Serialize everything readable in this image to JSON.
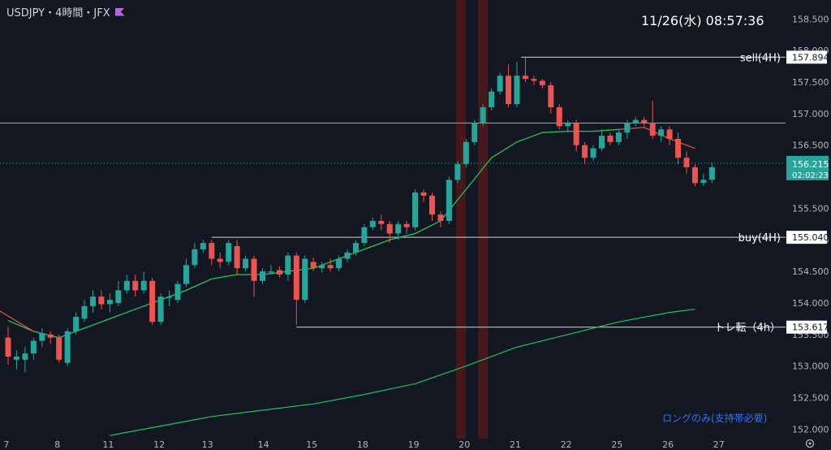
{
  "header": {
    "symbol_line": "USDJPY・4時間・JFX",
    "flag_icon": "flag-icon"
  },
  "clock": "11/26(水)   08:57:36",
  "note": "ロングのみ(支持帯必要)",
  "colors": {
    "bg": "#131722",
    "up": "#26a69a",
    "down": "#ef5350",
    "axis_text": "#b2b5be",
    "orange": "#f7931a",
    "ma_short": "#22c55e",
    "ma_short_red": "#e05050",
    "ma_long": "#18c464",
    "band": "#5a1a1a"
  },
  "chart_data": {
    "type": "candlestick",
    "title": "USDJPY・4時間・JFX",
    "y_ticks": [
      "158.500",
      "158.000",
      "157.500",
      "157.000",
      "156.500",
      "156.000",
      "155.500",
      "155.000",
      "154.500",
      "154.000",
      "153.500",
      "153.000",
      "152.500",
      "152.000"
    ],
    "ylim": [
      151.85,
      158.8
    ],
    "x_ticks": [
      "7",
      "8",
      "11",
      "12",
      "13",
      "14",
      "15",
      "18",
      "19",
      "20",
      "21",
      "22",
      "25",
      "26",
      "27"
    ],
    "x_tick_index": [
      0.0,
      6.0,
      12.0,
      18.0,
      23.7,
      30.3,
      36.0,
      42.0,
      48.0,
      54.0,
      60.0,
      66.0,
      72.0,
      78.0,
      84.0
    ],
    "candles": [
      [
        153.45,
        153.15,
        153.62,
        153.02
      ],
      [
        153.1,
        153.15,
        153.25,
        152.95
      ],
      [
        153.1,
        153.2,
        153.3,
        152.9
      ],
      [
        153.2,
        153.4,
        153.45,
        153.1
      ],
      [
        153.4,
        153.52,
        153.6,
        153.3
      ],
      [
        153.5,
        153.45,
        153.55,
        153.35
      ],
      [
        153.45,
        153.1,
        153.5,
        153.05
      ],
      [
        153.05,
        153.55,
        153.6,
        153.0
      ],
      [
        153.55,
        153.78,
        153.85,
        153.5
      ],
      [
        153.75,
        153.95,
        154.05,
        153.7
      ],
      [
        153.95,
        154.1,
        154.2,
        153.85
      ],
      [
        154.1,
        153.98,
        154.2,
        153.9
      ],
      [
        153.98,
        154.05,
        154.15,
        153.85
      ],
      [
        154.0,
        154.2,
        154.35,
        153.95
      ],
      [
        154.2,
        154.35,
        154.45,
        154.15
      ],
      [
        154.35,
        154.2,
        154.45,
        154.1
      ],
      [
        154.2,
        154.35,
        154.5,
        154.15
      ],
      [
        154.35,
        153.7,
        154.4,
        153.65
      ],
      [
        153.7,
        154.1,
        154.15,
        153.65
      ],
      [
        154.1,
        154.1,
        154.2,
        153.95
      ],
      [
        154.05,
        154.3,
        154.35,
        154.0
      ],
      [
        154.3,
        154.6,
        154.7,
        154.25
      ],
      [
        154.6,
        154.85,
        154.95,
        154.55
      ],
      [
        154.85,
        154.95,
        155.0,
        154.8
      ],
      [
        154.95,
        154.7,
        155.0,
        154.6
      ],
      [
        154.7,
        154.65,
        154.8,
        154.55
      ],
      [
        154.65,
        154.95,
        155.0,
        154.6
      ],
      [
        154.9,
        154.55,
        155.0,
        154.45
      ],
      [
        154.55,
        154.7,
        154.75,
        154.5
      ],
      [
        154.7,
        154.35,
        154.75,
        154.1
      ],
      [
        154.35,
        154.5,
        154.55,
        154.3
      ],
      [
        154.5,
        154.5,
        154.6,
        154.45
      ],
      [
        154.52,
        154.45,
        154.58,
        154.4
      ],
      [
        154.45,
        154.75,
        154.8,
        154.35
      ],
      [
        154.75,
        154.05,
        154.8,
        153.65
      ],
      [
        154.05,
        154.7,
        154.75,
        154.0
      ],
      [
        154.65,
        154.55,
        154.72,
        154.5
      ],
      [
        154.55,
        154.6,
        154.65,
        154.48
      ],
      [
        154.6,
        154.55,
        154.7,
        154.5
      ],
      [
        154.55,
        154.7,
        154.75,
        154.5
      ],
      [
        154.7,
        154.8,
        154.85,
        154.65
      ],
      [
        154.8,
        154.95,
        155.0,
        154.75
      ],
      [
        154.95,
        155.2,
        155.25,
        154.9
      ],
      [
        155.2,
        155.3,
        155.35,
        155.15
      ],
      [
        155.3,
        155.25,
        155.4,
        155.15
      ],
      [
        155.25,
        155.1,
        155.3,
        154.95
      ],
      [
        155.1,
        155.25,
        155.3,
        155.0
      ],
      [
        155.25,
        155.2,
        155.3,
        155.1
      ],
      [
        155.2,
        155.75,
        155.8,
        155.15
      ],
      [
        155.75,
        155.7,
        155.8,
        155.6
      ],
      [
        155.7,
        155.4,
        155.75,
        155.3
      ],
      [
        155.4,
        155.3,
        155.45,
        155.2
      ],
      [
        155.3,
        155.95,
        156.0,
        155.25
      ],
      [
        155.95,
        156.2,
        156.25,
        155.9
      ],
      [
        156.2,
        156.55,
        156.6,
        156.15
      ],
      [
        156.55,
        156.85,
        156.9,
        156.5
      ],
      [
        156.85,
        157.1,
        157.15,
        156.8
      ],
      [
        157.1,
        157.35,
        157.4,
        157.05
      ],
      [
        157.35,
        157.6,
        157.65,
        157.3
      ],
      [
        157.6,
        157.15,
        157.78,
        157.1
      ],
      [
        157.15,
        157.6,
        157.82,
        157.1
      ],
      [
        157.6,
        157.55,
        157.89,
        157.5
      ],
      [
        157.55,
        157.52,
        157.6,
        157.45
      ],
      [
        157.52,
        157.45,
        157.55,
        157.4
      ],
      [
        157.45,
        157.1,
        157.5,
        157.0
      ],
      [
        157.1,
        156.8,
        157.15,
        156.75
      ],
      [
        156.8,
        156.85,
        156.9,
        156.7
      ],
      [
        156.85,
        156.5,
        156.9,
        156.4
      ],
      [
        156.5,
        156.3,
        156.55,
        156.2
      ],
      [
        156.3,
        156.45,
        156.5,
        156.25
      ],
      [
        156.45,
        156.65,
        156.75,
        156.4
      ],
      [
        156.65,
        156.55,
        156.7,
        156.5
      ],
      [
        156.55,
        156.7,
        156.75,
        156.5
      ],
      [
        156.7,
        156.85,
        156.9,
        156.6
      ],
      [
        156.85,
        156.9,
        156.95,
        156.8
      ],
      [
        156.9,
        156.85,
        156.95,
        156.8
      ],
      [
        156.85,
        156.65,
        157.2,
        156.6
      ],
      [
        156.65,
        156.75,
        156.8,
        156.55
      ],
      [
        156.75,
        156.6,
        156.8,
        156.5
      ],
      [
        156.6,
        156.3,
        156.7,
        156.2
      ],
      [
        156.3,
        156.15,
        156.4,
        156.05
      ],
      [
        156.15,
        155.9,
        156.2,
        155.85
      ],
      [
        155.9,
        155.95,
        156.05,
        155.85
      ],
      [
        155.95,
        156.15,
        156.22,
        155.9
      ]
    ],
    "ma_short": [
      [
        0,
        153.72
      ],
      [
        3,
        153.55
      ],
      [
        6,
        153.45
      ],
      [
        9,
        153.6
      ],
      [
        12,
        153.75
      ],
      [
        15,
        153.9
      ],
      [
        18,
        154.05
      ],
      [
        21,
        154.2
      ],
      [
        24,
        154.38
      ],
      [
        27,
        154.45
      ],
      [
        30,
        154.45
      ],
      [
        33,
        154.5
      ],
      [
        36,
        154.55
      ],
      [
        39,
        154.7
      ],
      [
        42,
        154.85
      ],
      [
        45,
        155.0
      ],
      [
        48,
        155.1
      ],
      [
        51,
        155.3
      ],
      [
        54,
        155.8
      ],
      [
        57,
        156.3
      ],
      [
        60,
        156.55
      ],
      [
        63,
        156.7
      ],
      [
        66,
        156.72
      ],
      [
        69,
        156.72
      ],
      [
        72,
        156.75
      ],
      [
        75,
        156.78
      ],
      [
        78,
        156.6
      ],
      [
        80,
        156.5
      ],
      [
        81,
        156.45
      ]
    ],
    "ma_long": [
      [
        12,
        151.9
      ],
      [
        18,
        152.05
      ],
      [
        24,
        152.2
      ],
      [
        30,
        152.3
      ],
      [
        36,
        152.4
      ],
      [
        42,
        152.55
      ],
      [
        48,
        152.72
      ],
      [
        54,
        153.0
      ],
      [
        60,
        153.3
      ],
      [
        66,
        153.5
      ],
      [
        72,
        153.7
      ],
      [
        78,
        153.85
      ],
      [
        81,
        153.9
      ]
    ],
    "hlines": [
      {
        "label": "sell(4H)",
        "value": "157.894",
        "price": 157.894,
        "x_start": 60.5
      },
      {
        "label": "buy(4H)",
        "value": "155.040",
        "price": 155.04,
        "x_start": 24.0
      },
      {
        "label": "トレ転（4h）",
        "value": "153.617",
        "price": 153.617,
        "x_start": 34.0
      }
    ],
    "orange_line": 156.85,
    "current_price": {
      "value": "156.215",
      "timer": "02:02:23",
      "price": 156.215
    },
    "bands": [
      53.4,
      56.0
    ]
  }
}
